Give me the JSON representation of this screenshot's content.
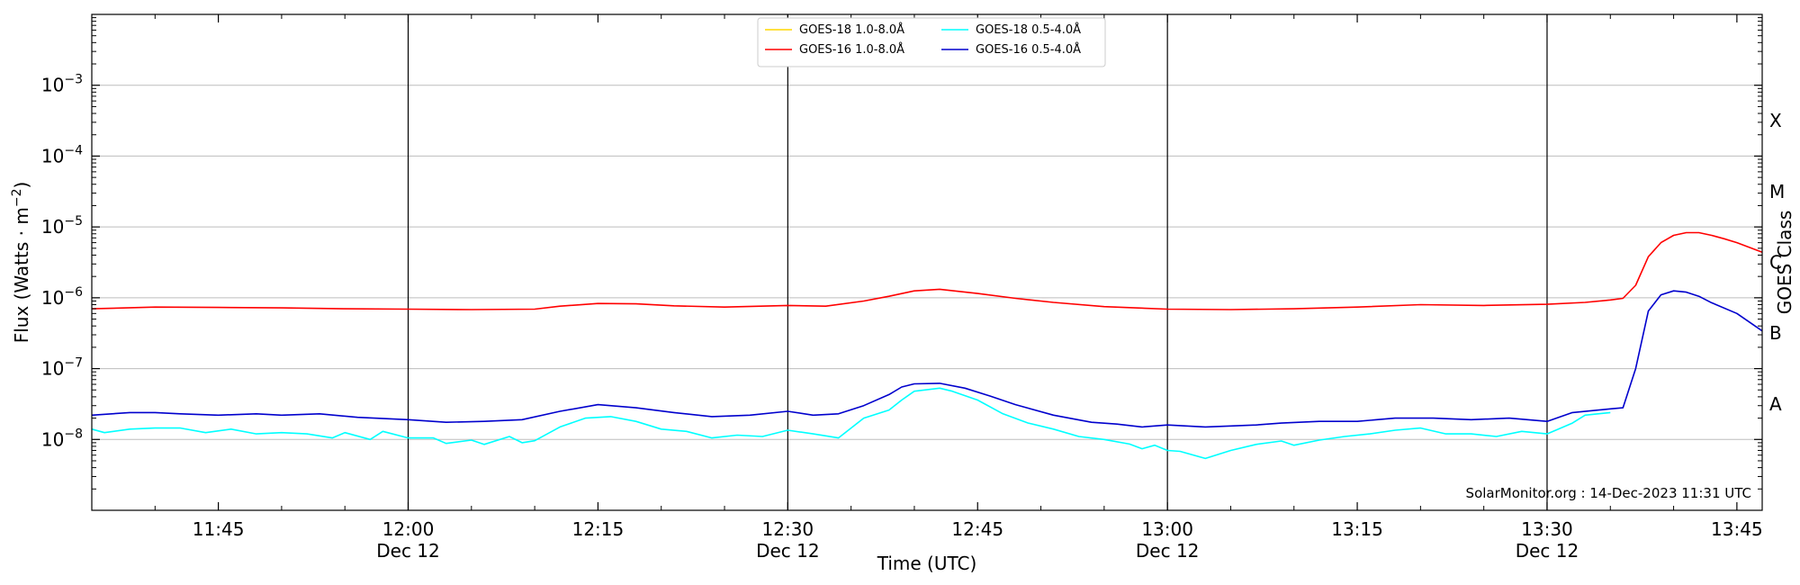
{
  "chart_data": {
    "type": "line",
    "xlabel": "Time (UTC)",
    "ylabel_parts": [
      "Flux (Watts · m",
      "−2",
      ")"
    ],
    "right_ylabel": "GOES Class",
    "y_scale": "log",
    "ylim": [
      1e-09,
      0.01
    ],
    "xlim": [
      "11:35",
      "13:47"
    ],
    "grid": "horizontal at decades",
    "y_ticks": [
      {
        "value": 1e-08,
        "base": "10",
        "exp": "−8"
      },
      {
        "value": 1e-07,
        "base": "10",
        "exp": "−7"
      },
      {
        "value": 1e-06,
        "base": "10",
        "exp": "−6"
      },
      {
        "value": 1e-05,
        "base": "10",
        "exp": "−5"
      },
      {
        "value": 0.0001,
        "base": "10",
        "exp": "−4"
      },
      {
        "value": 0.001,
        "base": "10",
        "exp": "−3"
      }
    ],
    "x_ticks": [
      {
        "time": "11:45",
        "line1": "11:45",
        "line2": ""
      },
      {
        "time": "12:00",
        "line1": "12:00",
        "line2": "Dec 12"
      },
      {
        "time": "12:15",
        "line1": "12:15",
        "line2": ""
      },
      {
        "time": "12:30",
        "line1": "12:30",
        "line2": "Dec 12"
      },
      {
        "time": "12:45",
        "line1": "12:45",
        "line2": ""
      },
      {
        "time": "13:00",
        "line1": "13:00",
        "line2": "Dec 12"
      },
      {
        "time": "13:15",
        "line1": "13:15",
        "line2": ""
      },
      {
        "time": "13:30",
        "line1": "13:30",
        "line2": "Dec 12"
      },
      {
        "time": "13:45",
        "line1": "13:45",
        "line2": ""
      }
    ],
    "vertical_lines": [
      "12:00",
      "12:30",
      "13:00",
      "13:30"
    ],
    "goes_classes": [
      {
        "label": "A",
        "value": 3.16e-08
      },
      {
        "label": "B",
        "value": 3.16e-07
      },
      {
        "label": "C",
        "value": 3.16e-06
      },
      {
        "label": "M",
        "value": 3.16e-05
      },
      {
        "label": "X",
        "value": 0.000316
      }
    ],
    "legend_position": "top-center",
    "legend": [
      {
        "name": "GOES-18 1.0-8.0Å",
        "color": "#ffd700"
      },
      {
        "name": "GOES-16 1.0-8.0Å",
        "color": "#ff0000"
      },
      {
        "name": "GOES-18 0.5-4.0Å",
        "color": "#00ffff"
      },
      {
        "name": "GOES-16 0.5-4.0Å",
        "color": "#0000cd"
      }
    ],
    "series": [
      {
        "name": "GOES-18 1.0-8.0Å",
        "color": "#ffd700",
        "points": []
      },
      {
        "name": "GOES-16 1.0-8.0Å",
        "color": "#ff0000",
        "points": [
          [
            "11:35",
            7e-07
          ],
          [
            "11:40",
            7.4e-07
          ],
          [
            "11:45",
            7.3e-07
          ],
          [
            "11:50",
            7.2e-07
          ],
          [
            "11:55",
            7e-07
          ],
          [
            "12:00",
            6.9e-07
          ],
          [
            "12:05",
            6.8e-07
          ],
          [
            "12:10",
            6.9e-07
          ],
          [
            "12:12",
            7.6e-07
          ],
          [
            "12:15",
            8.3e-07
          ],
          [
            "12:18",
            8.2e-07
          ],
          [
            "12:21",
            7.7e-07
          ],
          [
            "12:25",
            7.4e-07
          ],
          [
            "12:30",
            7.8e-07
          ],
          [
            "12:33",
            7.6e-07
          ],
          [
            "12:36",
            9e-07
          ],
          [
            "12:38",
            1.05e-06
          ],
          [
            "12:40",
            1.25e-06
          ],
          [
            "12:42",
            1.32e-06
          ],
          [
            "12:45",
            1.15e-06
          ],
          [
            "12:48",
            9.8e-07
          ],
          [
            "12:51",
            8.6e-07
          ],
          [
            "12:55",
            7.5e-07
          ],
          [
            "13:00",
            6.9e-07
          ],
          [
            "13:05",
            6.8e-07
          ],
          [
            "13:10",
            7e-07
          ],
          [
            "13:15",
            7.4e-07
          ],
          [
            "13:20",
            8e-07
          ],
          [
            "13:25",
            7.8e-07
          ],
          [
            "13:30",
            8.1e-07
          ],
          [
            "13:33",
            8.6e-07
          ],
          [
            "13:35",
            9.3e-07
          ],
          [
            "13:36",
            9.8e-07
          ],
          [
            "13:37",
            1.5e-06
          ],
          [
            "13:38",
            3.8e-06
          ],
          [
            "13:39",
            6e-06
          ],
          [
            "13:40",
            7.6e-06
          ],
          [
            "13:41",
            8.3e-06
          ],
          [
            "13:42",
            8.3e-06
          ],
          [
            "13:43",
            7.6e-06
          ],
          [
            "13:44",
            6.8e-06
          ],
          [
            "13:45",
            6e-06
          ],
          [
            "13:47",
            4.4e-06
          ]
        ]
      },
      {
        "name": "GOES-18 0.5-4.0Å",
        "color": "#00ffff",
        "points": [
          [
            "11:35",
            1.4e-08
          ],
          [
            "11:36",
            1.25e-08
          ],
          [
            "11:38",
            1.4e-08
          ],
          [
            "11:40",
            1.45e-08
          ],
          [
            "11:42",
            1.45e-08
          ],
          [
            "11:44",
            1.25e-08
          ],
          [
            "11:46",
            1.4e-08
          ],
          [
            "11:48",
            1.2e-08
          ],
          [
            "11:50",
            1.25e-08
          ],
          [
            "11:52",
            1.2e-08
          ],
          [
            "11:54",
            1.05e-08
          ],
          [
            "11:55",
            1.25e-08
          ],
          [
            "11:57",
            1e-08
          ],
          [
            "11:58",
            1.3e-08
          ],
          [
            "12:00",
            1.05e-08
          ],
          [
            "12:02",
            1.05e-08
          ],
          [
            "12:03",
            8.8e-09
          ],
          [
            "12:05",
            9.8e-09
          ],
          [
            "12:06",
            8.5e-09
          ],
          [
            "12:08",
            1.1e-08
          ],
          [
            "12:09",
            9e-09
          ],
          [
            "12:10",
            9.6e-09
          ],
          [
            "12:12",
            1.5e-08
          ],
          [
            "12:14",
            2e-08
          ],
          [
            "12:16",
            2.1e-08
          ],
          [
            "12:18",
            1.8e-08
          ],
          [
            "12:20",
            1.4e-08
          ],
          [
            "12:22",
            1.3e-08
          ],
          [
            "12:24",
            1.05e-08
          ],
          [
            "12:26",
            1.15e-08
          ],
          [
            "12:28",
            1.1e-08
          ],
          [
            "12:30",
            1.35e-08
          ],
          [
            "12:32",
            1.2e-08
          ],
          [
            "12:34",
            1.05e-08
          ],
          [
            "12:36",
            2e-08
          ],
          [
            "12:38",
            2.6e-08
          ],
          [
            "12:39",
            3.6e-08
          ],
          [
            "12:40",
            4.8e-08
          ],
          [
            "12:42",
            5.3e-08
          ],
          [
            "12:43",
            4.8e-08
          ],
          [
            "12:45",
            3.6e-08
          ],
          [
            "12:47",
            2.3e-08
          ],
          [
            "12:49",
            1.7e-08
          ],
          [
            "12:51",
            1.4e-08
          ],
          [
            "12:53",
            1.1e-08
          ],
          [
            "12:55",
            1e-08
          ],
          [
            "12:57",
            8.6e-09
          ],
          [
            "12:58",
            7.4e-09
          ],
          [
            "12:59",
            8.3e-09
          ],
          [
            "13:00",
            7e-09
          ],
          [
            "13:01",
            6.8e-09
          ],
          [
            "13:03",
            5.4e-09
          ],
          [
            "13:05",
            7e-09
          ],
          [
            "13:07",
            8.5e-09
          ],
          [
            "13:09",
            9.5e-09
          ],
          [
            "13:10",
            8.3e-09
          ],
          [
            "13:12",
            9.8e-09
          ],
          [
            "13:14",
            1.1e-08
          ],
          [
            "13:16",
            1.2e-08
          ],
          [
            "13:18",
            1.35e-08
          ],
          [
            "13:20",
            1.45e-08
          ],
          [
            "13:22",
            1.2e-08
          ],
          [
            "13:24",
            1.2e-08
          ],
          [
            "13:26",
            1.1e-08
          ],
          [
            "13:28",
            1.3e-08
          ],
          [
            "13:30",
            1.2e-08
          ],
          [
            "13:32",
            1.7e-08
          ],
          [
            "13:33",
            2.2e-08
          ],
          [
            "13:35",
            2.4e-08
          ]
        ]
      },
      {
        "name": "GOES-16 0.5-4.0Å",
        "color": "#0000cd",
        "points": [
          [
            "11:35",
            2.2e-08
          ],
          [
            "11:38",
            2.4e-08
          ],
          [
            "11:40",
            2.4e-08
          ],
          [
            "11:42",
            2.3e-08
          ],
          [
            "11:45",
            2.2e-08
          ],
          [
            "11:48",
            2.3e-08
          ],
          [
            "11:50",
            2.2e-08
          ],
          [
            "11:53",
            2.3e-08
          ],
          [
            "11:56",
            2.05e-08
          ],
          [
            "12:00",
            1.9e-08
          ],
          [
            "12:03",
            1.75e-08
          ],
          [
            "12:06",
            1.8e-08
          ],
          [
            "12:09",
            1.9e-08
          ],
          [
            "12:12",
            2.5e-08
          ],
          [
            "12:15",
            3.1e-08
          ],
          [
            "12:18",
            2.8e-08
          ],
          [
            "12:21",
            2.4e-08
          ],
          [
            "12:24",
            2.1e-08
          ],
          [
            "12:27",
            2.2e-08
          ],
          [
            "12:30",
            2.5e-08
          ],
          [
            "12:32",
            2.2e-08
          ],
          [
            "12:34",
            2.3e-08
          ],
          [
            "12:36",
            3e-08
          ],
          [
            "12:38",
            4.3e-08
          ],
          [
            "12:39",
            5.5e-08
          ],
          [
            "12:40",
            6.1e-08
          ],
          [
            "12:42",
            6.2e-08
          ],
          [
            "12:44",
            5.3e-08
          ],
          [
            "12:46",
            4.1e-08
          ],
          [
            "12:48",
            3.1e-08
          ],
          [
            "12:51",
            2.2e-08
          ],
          [
            "12:54",
            1.75e-08
          ],
          [
            "12:56",
            1.65e-08
          ],
          [
            "12:58",
            1.5e-08
          ],
          [
            "13:00",
            1.6e-08
          ],
          [
            "13:03",
            1.5e-08
          ],
          [
            "13:05",
            1.55e-08
          ],
          [
            "13:07",
            1.6e-08
          ],
          [
            "13:09",
            1.7e-08
          ],
          [
            "13:12",
            1.8e-08
          ],
          [
            "13:15",
            1.8e-08
          ],
          [
            "13:18",
            2e-08
          ],
          [
            "13:21",
            2e-08
          ],
          [
            "13:24",
            1.9e-08
          ],
          [
            "13:27",
            2e-08
          ],
          [
            "13:30",
            1.8e-08
          ],
          [
            "13:32",
            2.4e-08
          ],
          [
            "13:35",
            2.7e-08
          ],
          [
            "13:36",
            2.8e-08
          ],
          [
            "13:37",
            1e-07
          ],
          [
            "13:38",
            6.5e-07
          ],
          [
            "13:39",
            1.1e-06
          ],
          [
            "13:40",
            1.25e-06
          ],
          [
            "13:41",
            1.2e-06
          ],
          [
            "13:42",
            1.05e-06
          ],
          [
            "13:43",
            8.5e-07
          ],
          [
            "13:45",
            6e-07
          ],
          [
            "13:47",
            3.4e-07
          ]
        ]
      }
    ]
  },
  "footer": {
    "credit": "SolarMonitor.org : 14-Dec-2023 11:31 UTC"
  }
}
